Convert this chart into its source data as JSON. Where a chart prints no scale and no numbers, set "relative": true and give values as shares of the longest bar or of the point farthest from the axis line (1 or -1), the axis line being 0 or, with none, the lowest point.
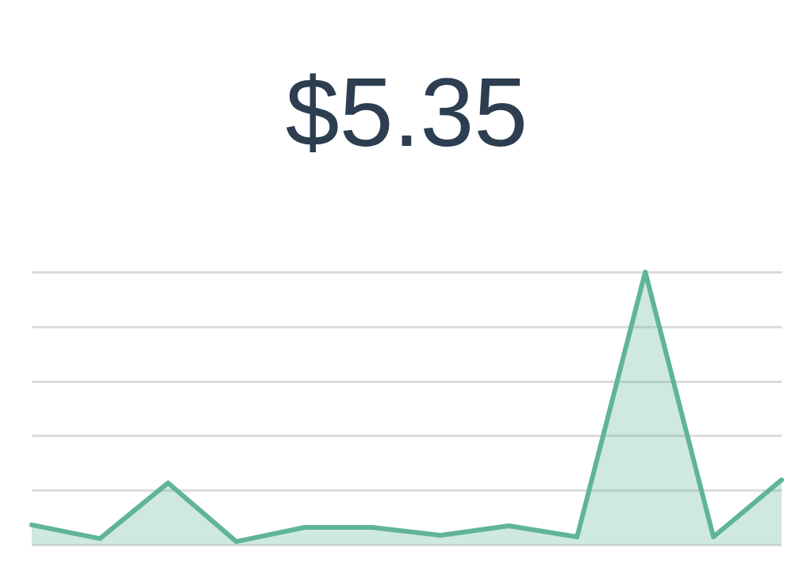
{
  "chart_data": {
    "type": "area",
    "title": "$5.35",
    "relative": true,
    "grid": "y",
    "categories": [
      null,
      null,
      null,
      null,
      null,
      null,
      null,
      null,
      null,
      null,
      null,
      null
    ],
    "series": [
      {
        "color": "#5fb49a",
        "values": [
          0.073,
          0.023,
          0.227,
          0.012,
          0.064,
          0.064,
          0.035,
          0.07,
          0.029,
          1,
          0.029,
          0.238
        ]
      }
    ]
  }
}
